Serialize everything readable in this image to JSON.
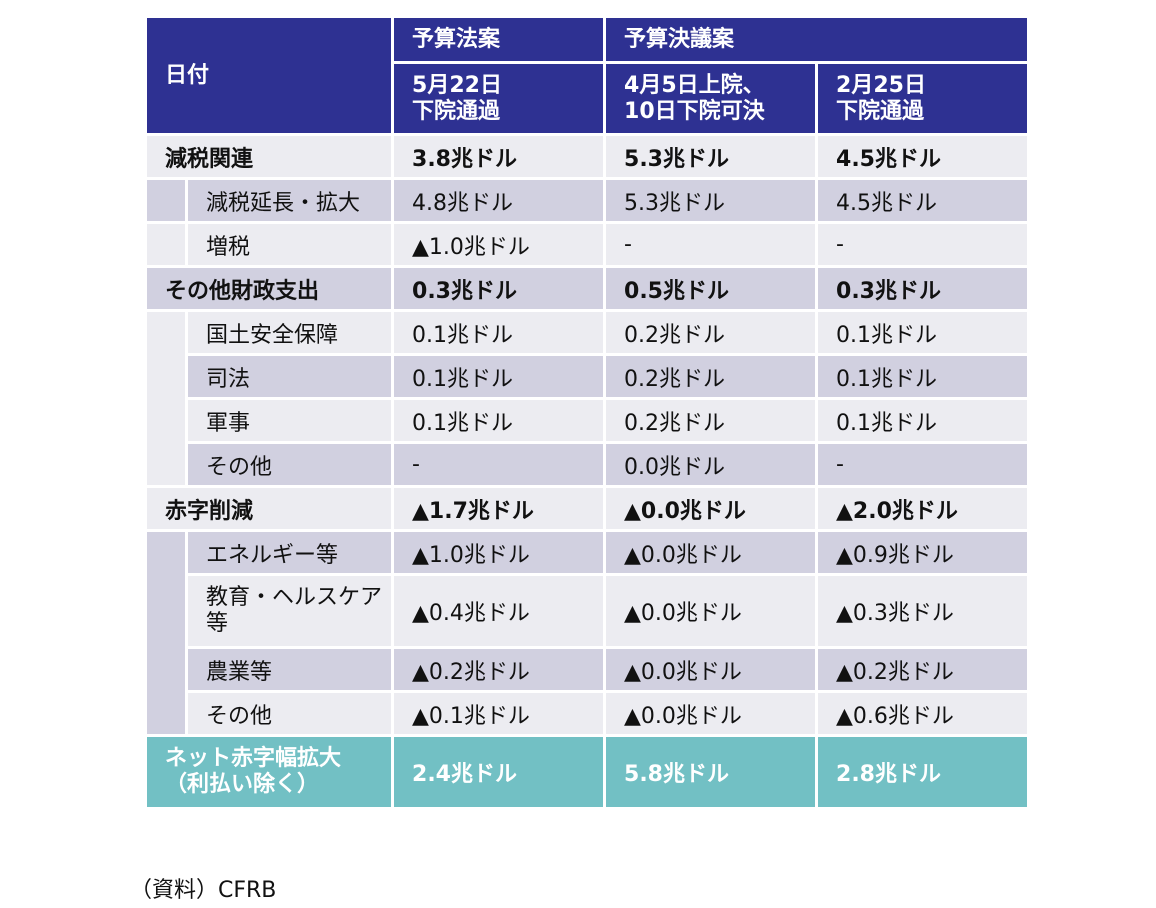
{
  "header": {
    "date_label": "日付",
    "budget_bill_group": "予算法案",
    "budget_resolution_group": "予算決議案",
    "col1_line1": "5月22日",
    "col1_line2": "下院通過",
    "col2_line1": "4月5日上院、",
    "col2_line2": "10日下院可決",
    "col3_line1": "2月25日",
    "col3_line2": "下院通過"
  },
  "rows": [
    {
      "label": "減税関連",
      "values": [
        "3.8兆ドル",
        "5.3兆ドル",
        "4.5兆ドル"
      ]
    },
    {
      "label": "減税延長・拡大",
      "values": [
        "4.8兆ドル",
        "5.3兆ドル",
        "4.5兆ドル"
      ]
    },
    {
      "label": "増税",
      "values": [
        "▲1.0兆ドル",
        "-",
        "-"
      ]
    },
    {
      "label": "その他財政支出",
      "values": [
        "0.3兆ドル",
        "0.5兆ドル",
        "0.3兆ドル"
      ]
    },
    {
      "label": "国土安全保障",
      "values": [
        "0.1兆ドル",
        "0.2兆ドル",
        "0.1兆ドル"
      ]
    },
    {
      "label": "司法",
      "values": [
        "0.1兆ドル",
        "0.2兆ドル",
        "0.1兆ドル"
      ]
    },
    {
      "label": "軍事",
      "values": [
        "0.1兆ドル",
        "0.2兆ドル",
        "0.1兆ドル"
      ]
    },
    {
      "label": "その他",
      "values": [
        "-",
        "0.0兆ドル",
        "-"
      ]
    },
    {
      "label": "赤字削減",
      "values": [
        "▲1.7兆ドル",
        "▲0.0兆ドル",
        "▲2.0兆ドル"
      ]
    },
    {
      "label": "エネルギー等",
      "values": [
        "▲1.0兆ドル",
        "▲0.0兆ドル",
        "▲0.9兆ドル"
      ]
    },
    {
      "label_line1": "教育・ヘルスケア",
      "label_line2": "等",
      "values": [
        "▲0.4兆ドル",
        "▲0.0兆ドル",
        "▲0.3兆ドル"
      ]
    },
    {
      "label": "農業等",
      "values": [
        "▲0.2兆ドル",
        "▲0.0兆ドル",
        "▲0.2兆ドル"
      ]
    },
    {
      "label": "その他",
      "values": [
        "▲0.1兆ドル",
        "▲0.0兆ドル",
        "▲0.6兆ドル"
      ]
    }
  ],
  "total": {
    "label_line1": "ネット赤字幅拡大",
    "label_line2": "（利払い除く）",
    "values": [
      "2.4兆ドル",
      "5.8兆ドル",
      "2.8兆ドル"
    ]
  },
  "source": "（資料）CFRB",
  "colors": {
    "header_bg": "#2e3192",
    "row_light": "#ececf1",
    "row_dark": "#d1d0e0",
    "total_bg": "#72c0c4"
  }
}
